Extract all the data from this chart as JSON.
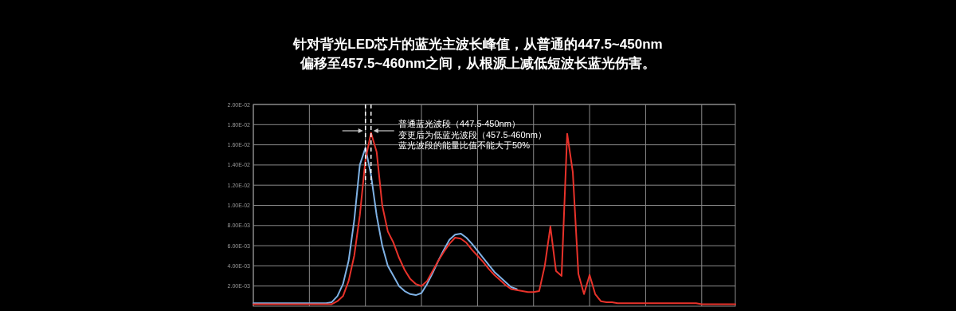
{
  "chart_data": {
    "type": "line",
    "title": "针对背光LED芯片的蓝光主波长峰值，从普通的447.5~450nm",
    "subtitle": "偏移至457.5~460nm之间，从根源上减低短波长蓝光伤害。",
    "annotations": [
      "普通蓝光波段（447.5-450nm）",
      "变更后为低蓝光波段（457.5-460nm）",
      "蓝光波段的能量比值不能大于50%"
    ],
    "categories": [
      null,
      null,
      null,
      null,
      null,
      null,
      null,
      null,
      null,
      null,
      null,
      null,
      null,
      null,
      null,
      null,
      null,
      null,
      null,
      null,
      null,
      null,
      null,
      null,
      null,
      null,
      null,
      null,
      null,
      null,
      null,
      null,
      null,
      null,
      null,
      null,
      null,
      null,
      null,
      null,
      null,
      null,
      null,
      null,
      null,
      null,
      null,
      null,
      null,
      null,
      null,
      null,
      null,
      null,
      null,
      null,
      null,
      null,
      null,
      null,
      null,
      null,
      null,
      null,
      null,
      null,
      null,
      null,
      null,
      null,
      null,
      null,
      null,
      null,
      null,
      null,
      null,
      null,
      null,
      null,
      null,
      null,
      null,
      null,
      null,
      null,
      null
    ],
    "series": [
      {
        "color": "#7fb2e5",
        "values": [
          0.0003,
          0.0003,
          0.0003,
          0.0003,
          0.0003,
          0.0003,
          0.0003,
          0.0003,
          0.0003,
          0.0003,
          0.0003,
          0.0003,
          0.0003,
          0.0003,
          0.0004,
          0.001,
          0.0022,
          0.0045,
          0.0085,
          0.014,
          0.0157,
          0.013,
          0.009,
          0.006,
          0.004,
          0.003,
          0.002,
          0.0015,
          0.0012,
          0.0011,
          0.0013,
          0.0022,
          0.0033,
          0.0045,
          0.0056,
          0.0066,
          0.0071,
          0.0072,
          0.0068,
          0.0062,
          0.0055,
          0.0048,
          0.0041,
          0.0034,
          0.0029,
          0.0024,
          0.0019,
          0.0017,
          null,
          null,
          null,
          null,
          null,
          null,
          null,
          null,
          null,
          null,
          null,
          null,
          null,
          null,
          null,
          null,
          null,
          null,
          null,
          null,
          null,
          null,
          null,
          null,
          null,
          null,
          null,
          null,
          null,
          null,
          null,
          null,
          null,
          null,
          null,
          null,
          null,
          null,
          null
        ]
      },
      {
        "color": "#e8322a",
        "values": [
          0.0002,
          0.0002,
          0.0002,
          0.0002,
          0.0002,
          0.0002,
          0.0002,
          0.0002,
          0.0002,
          0.0002,
          0.0002,
          0.0002,
          0.0002,
          0.0002,
          0.0002,
          0.0005,
          0.001,
          0.0025,
          0.005,
          0.009,
          0.0145,
          0.0172,
          0.0153,
          0.01,
          0.0074,
          0.0063,
          0.0048,
          0.0036,
          0.0027,
          0.0022,
          0.002,
          0.0025,
          0.0035,
          0.0045,
          0.0054,
          0.0062,
          0.0068,
          0.0067,
          0.0063,
          0.0056,
          0.005,
          0.0044,
          0.0037,
          0.0031,
          0.0026,
          0.0021,
          0.0017,
          0.0016,
          0.0015,
          0.0014,
          0.0014,
          0.0015,
          0.004,
          0.0079,
          0.0035,
          0.003,
          0.0171,
          0.0133,
          0.0032,
          0.0012,
          0.0031,
          0.0012,
          0.0005,
          0.0004,
          0.0004,
          0.0003,
          0.0003,
          0.0003,
          0.0003,
          0.0003,
          0.0003,
          0.0003,
          0.0003,
          0.0003,
          0.0003,
          0.0003,
          0.0003,
          0.0003,
          0.0003,
          0.0003,
          0.0002,
          0.0002,
          0.0002,
          0.0002,
          0.0002,
          0.0002,
          0.0002
        ]
      }
    ],
    "ylim": [
      0,
      0.02
    ],
    "yticks": [
      {
        "value": 0.02,
        "label": "2.00E-02"
      },
      {
        "value": 0.018,
        "label": "1.80E-02"
      },
      {
        "value": 0.016,
        "label": "1.60E-02"
      },
      {
        "value": 0.014,
        "label": "1.40E-02"
      },
      {
        "value": 0.012,
        "label": "1.20E-02"
      },
      {
        "value": 0.01,
        "label": "1.00E-02"
      },
      {
        "value": 0.008,
        "label": "8.00E-03"
      },
      {
        "value": 0.006,
        "label": "6.00E-03"
      },
      {
        "value": 0.004,
        "label": "4.00E-03"
      },
      {
        "value": 0.002,
        "label": "2.00E-03"
      }
    ],
    "tick_labels": "y",
    "grid": true,
    "marker": "none",
    "line_style": "solid"
  }
}
